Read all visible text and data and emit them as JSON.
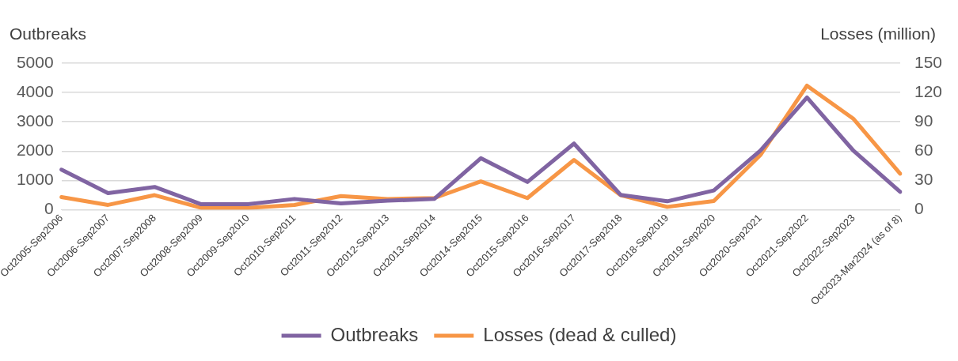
{
  "chart_data": {
    "type": "line",
    "ylabel": "Outbreaks",
    "y2label": "Losses (million)",
    "categories": [
      "Oct2005-Sep2006",
      "Oct2006-Sep2007",
      "Oct2007-Sep2008",
      "Oct2008-Sep2009",
      "Oct2009-Sep2010",
      "Oct2010-Sep2011",
      "Oct2011-Sep2012",
      "Oct2012-Sep2013",
      "Oct2013-Sep2014",
      "Oct2014-Sep2015",
      "Oct2015-Sep2016",
      "Oct2016-Sep2017",
      "Oct2017-Sep2018",
      "Oct2018-Sep2019",
      "Oct2019-Sep2020",
      "Oct2020-Sep2021",
      "Oct2021-Sep2022",
      "Oct2022-Sep2023",
      "Oct2023-Mar2024 (as of 8)"
    ],
    "series": [
      {
        "name": "Outbreaks",
        "color": "#8064a2",
        "values": [
          1370,
          570,
          780,
          190,
          190,
          370,
          220,
          310,
          370,
          1760,
          950,
          2260,
          510,
          290,
          660,
          2020,
          3830,
          2010,
          610
        ]
      },
      {
        "name": "Losses (dead & culled)",
        "color": "#f79646",
        "axis": "y2",
        "values": [
          13,
          5,
          15,
          2,
          2,
          5,
          14,
          11,
          12,
          29,
          12,
          51,
          15,
          3,
          9,
          56,
          127,
          93,
          37
        ]
      }
    ],
    "ylim": [
      0,
      5000
    ],
    "yticks": [
      0,
      1000,
      2000,
      3000,
      4000,
      5000
    ],
    "y2lim": [
      0,
      150
    ],
    "y2ticks": [
      0,
      30,
      60,
      90,
      120,
      150
    ],
    "grid": "y",
    "legend": "bottom",
    "marker": "none",
    "line_style": "solid"
  }
}
